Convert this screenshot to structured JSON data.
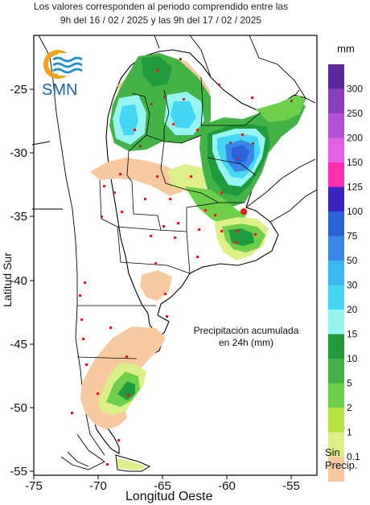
{
  "header": {
    "line1": "Los valores corresponden al periodo comprendido entre las",
    "line2": "9h del 16 / 02 / 2025  y las 9h del 17 / 02 / 2025"
  },
  "logo": {
    "text": "SMN"
  },
  "axes": {
    "ylabel": "Latitud Sur",
    "xlabel": "Longitud Oeste",
    "xticks": [
      "-75",
      "-70",
      "-65",
      "-60",
      "-55"
    ],
    "yticks": [
      "-25",
      "-30",
      "-35",
      "-40",
      "-45",
      "-50",
      "-55"
    ]
  },
  "annotation": {
    "line1": "Precipitación acumulada",
    "line2": "en 24h (mm)"
  },
  "legend": {
    "unit": "mm",
    "labels": [
      "300",
      "250",
      "200",
      "150",
      "125",
      "100",
      "75",
      "50",
      "30",
      "20",
      "15",
      "10",
      "5",
      "2",
      "1",
      "0.1"
    ],
    "colors": [
      "#5b2a9a",
      "#8a3fbf",
      "#b44fd8",
      "#e35fe6",
      "#ff2fb0",
      "#3a24c0",
      "#2b63d9",
      "#3b87e8",
      "#38b7f0",
      "#44d6f2",
      "#96f5f0",
      "#1f9a3c",
      "#43b348",
      "#6ecf4a",
      "#b6e33f",
      "#dcf08a",
      "#f7c9a0"
    ],
    "dry_label_1": "Sin",
    "dry_label_2": "Precip."
  }
}
